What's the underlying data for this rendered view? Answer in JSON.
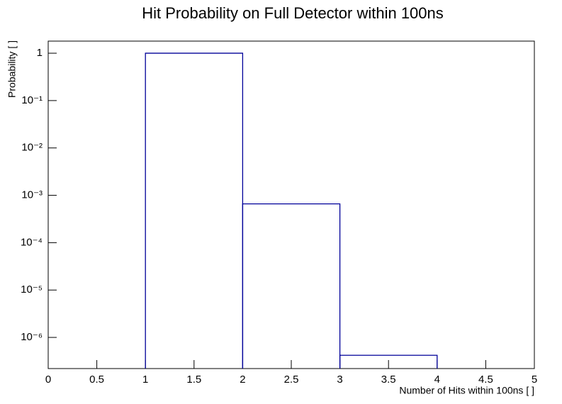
{
  "chart_data": {
    "type": "histogram",
    "title": "Hit Probability on Full Detector within 100ns",
    "x_label": "Number of Hits within 100ns [ ]",
    "y_label": "Probability [ ]",
    "bins": [
      1,
      2,
      3,
      4
    ],
    "counts": [
      1,
      0.00066,
      4.2e-07
    ],
    "color": "#000099",
    "log_y": true,
    "xlim": [
      0,
      5
    ],
    "xticks": [
      0,
      0.5,
      1,
      1.5,
      2,
      2.5,
      3,
      3.5,
      4,
      4.5,
      5
    ],
    "ylim": [
      2.2e-07,
      1.8
    ],
    "yticks": [
      {
        "value": 1e-06,
        "label": "10⁻⁶"
      },
      {
        "value": 1e-05,
        "label": "10⁻⁵"
      },
      {
        "value": 0.0001,
        "label": "10⁻⁴"
      },
      {
        "value": 0.001,
        "label": "10⁻³"
      },
      {
        "value": 0.01,
        "label": "10⁻²"
      },
      {
        "value": 0.1,
        "label": "10⁻¹"
      },
      1
    ]
  }
}
